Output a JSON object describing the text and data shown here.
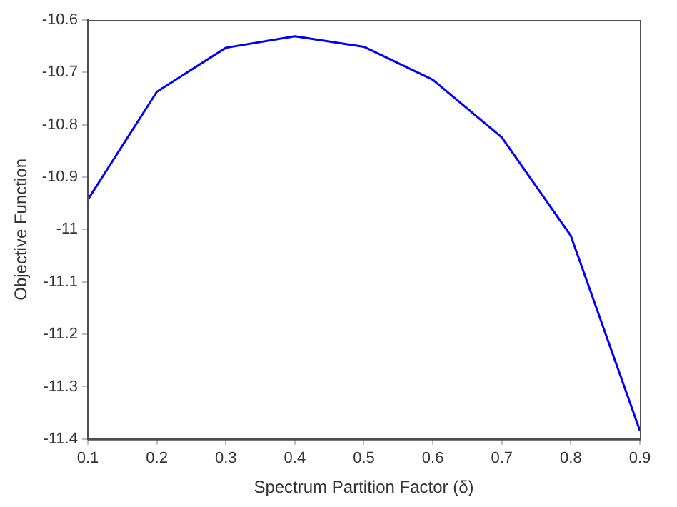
{
  "chart_data": {
    "type": "line",
    "xlabel": "Spectrum Partition Factor (δ)",
    "ylabel": "Objective Function",
    "x": [
      0.1,
      0.2,
      0.3,
      0.4,
      0.5,
      0.6,
      0.7,
      0.8,
      0.9
    ],
    "series": [
      {
        "color": "#0000ff",
        "values": [
          -10.943,
          -10.737,
          -10.653,
          -10.631,
          -10.651,
          -10.714,
          -10.824,
          -11.012,
          -11.384
        ]
      }
    ],
    "xlim": [
      0.1,
      0.9
    ],
    "xticks": [
      0.1,
      0.2,
      0.3,
      0.4,
      0.5,
      0.6,
      0.7,
      0.8,
      0.9
    ],
    "ylim": [
      -11.4,
      -10.6
    ],
    "yticks": [
      -11.4,
      -11.3,
      -11.2,
      -11.1,
      -11,
      -10.9,
      -10.8,
      -10.7,
      -10.6
    ],
    "grid": false,
    "legend": false,
    "marker": "none",
    "line_style": "solid"
  }
}
